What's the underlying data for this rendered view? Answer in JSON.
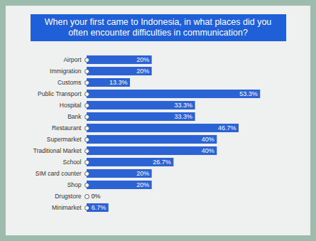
{
  "chart_data": {
    "type": "bar",
    "orientation": "horizontal",
    "title": "When your first came to Indonesia, in what places did you often encounter difficulties in communication?",
    "categories": [
      "Airport",
      "Immigration",
      "Customs",
      "Public Transport",
      "Hospital",
      "Bank",
      "Restaurant",
      "Supermarket",
      "Traditional Market",
      "School",
      "SIM card counter",
      "Shop",
      "Drugstore",
      "Minimarket"
    ],
    "values": [
      20,
      20,
      13.3,
      53.3,
      33.3,
      33.3,
      46.7,
      40,
      40,
      26.7,
      20,
      20,
      0,
      6.7
    ],
    "value_labels": [
      "20%",
      "20%",
      "13.3%",
      "53.3%",
      "33.3%",
      "33.3%",
      "46.7%",
      "40%",
      "40%",
      "26.7%",
      "20%",
      "20%",
      "0%",
      "6.7%"
    ],
    "data_labels": true,
    "color": "#2b63d4",
    "xlim": [
      0,
      60
    ],
    "tick_labels": "y",
    "grid": false
  }
}
